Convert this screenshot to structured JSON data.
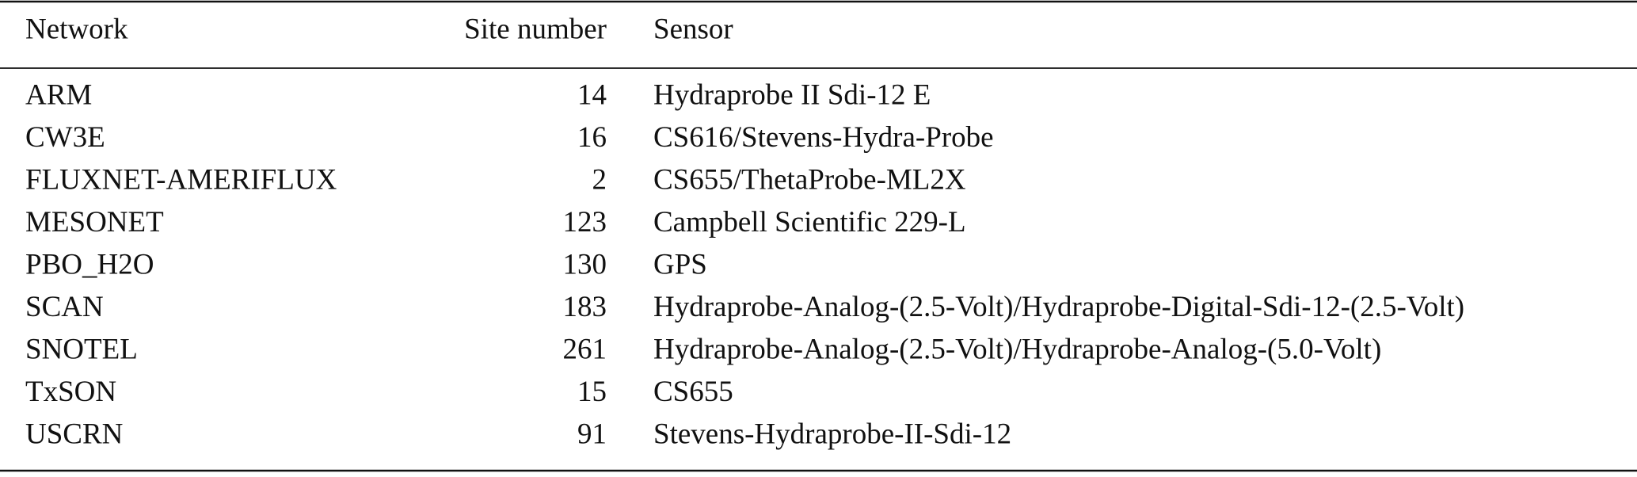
{
  "table": {
    "header": [
      "Network",
      "Site number",
      "Sensor"
    ],
    "rows": [
      [
        "ARM",
        14,
        "Hydraprobe II Sdi-12 E"
      ],
      [
        "CW3E",
        16,
        "CS616/Stevens-Hydra-Probe"
      ],
      [
        "FLUXNET-AMERIFLUX",
        2,
        "CS655/ThetaProbe-ML2X"
      ],
      [
        "MESONET",
        123,
        "Campbell Scientific 229-L"
      ],
      [
        "PBO_H2O",
        130,
        "GPS"
      ],
      [
        "SCAN",
        183,
        "Hydraprobe-Analog-(2.5-Volt)/Hydraprobe-Digital-Sdi-12-(2.5-Volt)"
      ],
      [
        "SNOTEL",
        261,
        "Hydraprobe-Analog-(2.5-Volt)/Hydraprobe-Analog-(5.0-Volt)"
      ],
      [
        "TxSON",
        15,
        "CS655"
      ],
      [
        "USCRN",
        91,
        "Stevens-Hydraprobe-II-Sdi-12"
      ]
    ]
  }
}
